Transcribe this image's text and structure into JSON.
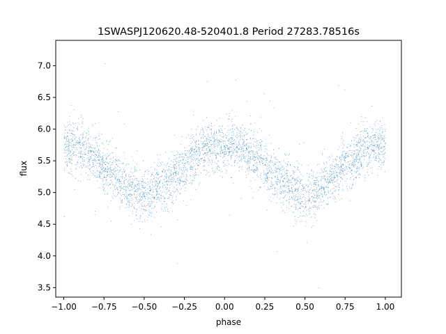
{
  "chart_data": {
    "type": "scatter",
    "title": "1SWASPJ120620.48-520401.8 Period 27283.78516s",
    "xlabel": "phase",
    "ylabel": "flux",
    "xlim": [
      -1.05,
      1.1
    ],
    "ylim": [
      3.35,
      7.4
    ],
    "xticks": [
      -1.0,
      -0.75,
      -0.5,
      -0.25,
      0.0,
      0.25,
      0.5,
      0.75,
      1.0
    ],
    "xtick_labels": [
      "−1.00",
      "−0.75",
      "−0.50",
      "−0.25",
      "0.00",
      "0.25",
      "0.50",
      "0.75",
      "1.00"
    ],
    "yticks": [
      3.5,
      4.0,
      4.5,
      5.0,
      5.5,
      6.0,
      6.5,
      7.0
    ],
    "ytick_labels": [
      "3.5",
      "4.0",
      "4.5",
      "5.0",
      "5.5",
      "6.0",
      "6.5",
      "7.0"
    ],
    "grid": false,
    "marker_color": "#1f77b4",
    "series": [
      {
        "phase": [
          -1.0,
          -0.9,
          -0.8,
          -0.7,
          -0.6,
          -0.5,
          -0.45,
          -0.4,
          -0.3,
          -0.2,
          -0.1,
          0.0,
          0.05,
          0.1,
          0.2,
          0.3,
          0.4,
          0.5,
          0.55,
          0.6,
          0.7,
          0.8,
          0.9,
          1.0
        ],
        "flux_median": [
          5.75,
          5.7,
          5.55,
          5.3,
          5.1,
          4.95,
          5.0,
          5.1,
          5.3,
          5.55,
          5.7,
          5.75,
          5.75,
          5.7,
          5.55,
          5.3,
          5.1,
          4.95,
          5.0,
          5.1,
          5.3,
          5.55,
          5.7,
          5.75
        ],
        "scatter_sigma": 0.2,
        "n_points": 60000
      }
    ]
  }
}
